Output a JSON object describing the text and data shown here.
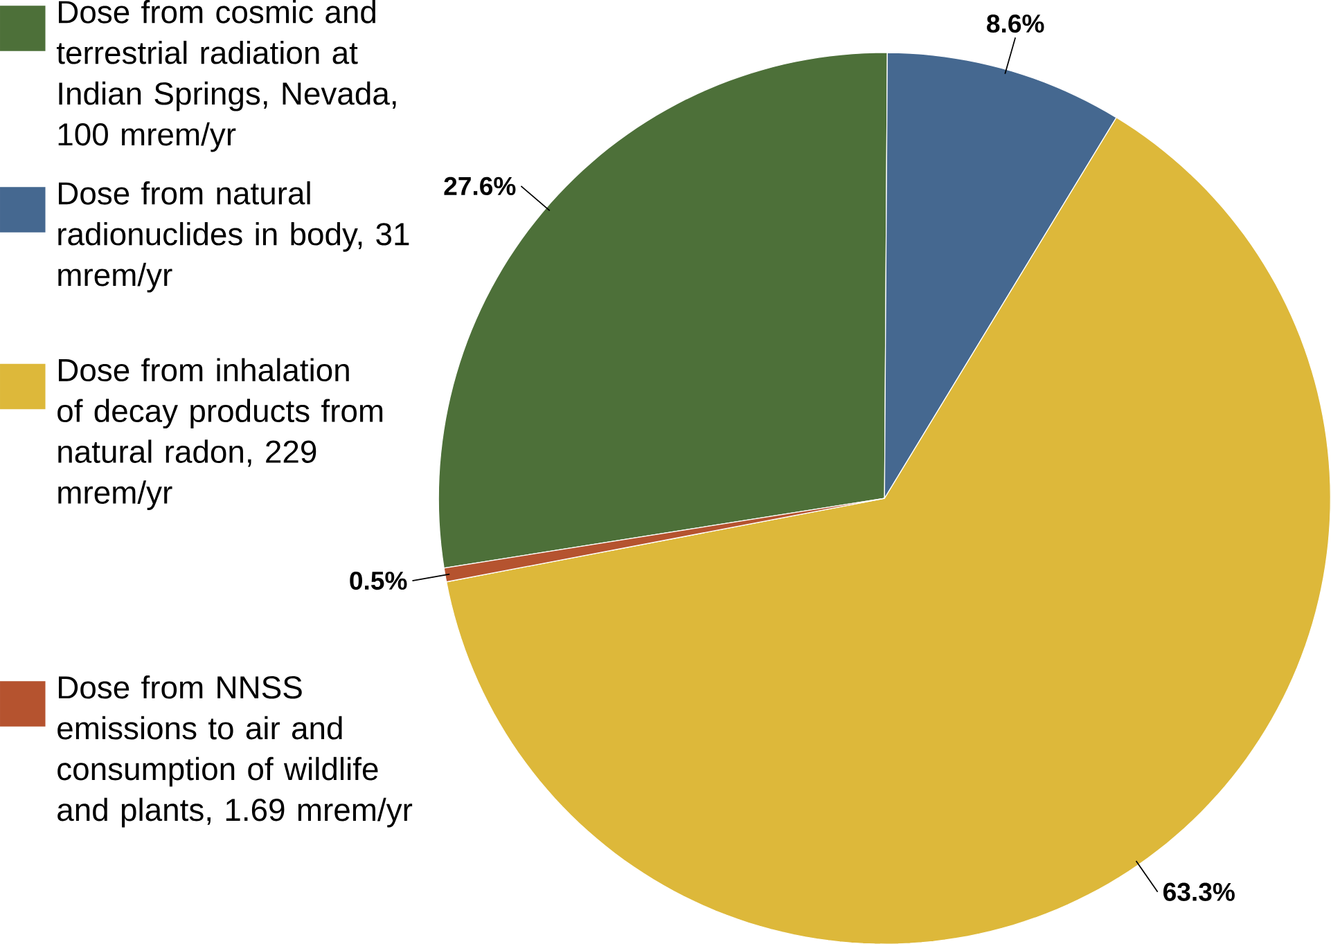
{
  "chart_data": {
    "type": "pie",
    "categories": [
      "Dose from cosmic and terrestrial radiation at Indian Springs, Nevada, 100 mrem/yr",
      "Dose from natural radionuclides in body, 31 mrem/yr",
      "Dose from inhalation of decay products from natural radon, 229 mrem/yr",
      "Dose from NNSS emissions to air and consumption of wildlife and plants, 1.69 mrem/yr"
    ],
    "values": [
      27.6,
      8.6,
      63.3,
      0.5
    ],
    "colors": [
      "#4d7039",
      "#456890",
      "#ddb83a",
      "#b5532f"
    ],
    "value_labels": [
      "27.6%",
      "8.6%",
      "63.3%",
      "0.5%"
    ],
    "legend": "left"
  }
}
